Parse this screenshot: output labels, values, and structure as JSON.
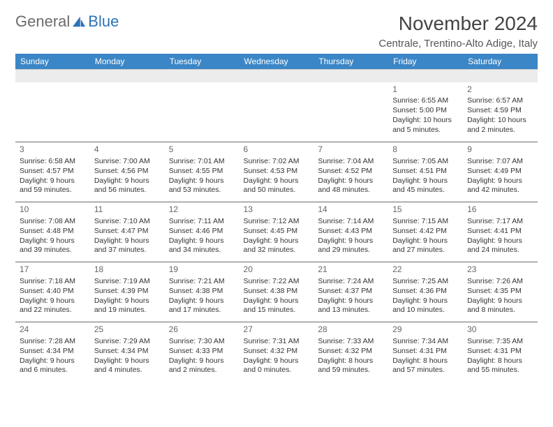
{
  "brand": {
    "text_general": "General",
    "text_blue": "Blue"
  },
  "title": {
    "month_year": "November 2024",
    "location": "Centrale, Trentino-Alto Adige, Italy"
  },
  "colors": {
    "header_bg": "#3b86c6",
    "header_text": "#ffffff",
    "border": "#6b6b6b",
    "blank_row_bg": "#ececec",
    "text": "#333333",
    "brand_blue": "#2d72b8",
    "brand_grey": "#6b6b6b"
  },
  "day_headers": [
    "Sunday",
    "Monday",
    "Tuesday",
    "Wednesday",
    "Thursday",
    "Friday",
    "Saturday"
  ],
  "weeks": [
    [
      null,
      null,
      null,
      null,
      null,
      {
        "n": "1",
        "sr": "Sunrise: 6:55 AM",
        "ss": "Sunset: 5:00 PM",
        "dl1": "Daylight: 10 hours",
        "dl2": "and 5 minutes."
      },
      {
        "n": "2",
        "sr": "Sunrise: 6:57 AM",
        "ss": "Sunset: 4:59 PM",
        "dl1": "Daylight: 10 hours",
        "dl2": "and 2 minutes."
      }
    ],
    [
      {
        "n": "3",
        "sr": "Sunrise: 6:58 AM",
        "ss": "Sunset: 4:57 PM",
        "dl1": "Daylight: 9 hours",
        "dl2": "and 59 minutes."
      },
      {
        "n": "4",
        "sr": "Sunrise: 7:00 AM",
        "ss": "Sunset: 4:56 PM",
        "dl1": "Daylight: 9 hours",
        "dl2": "and 56 minutes."
      },
      {
        "n": "5",
        "sr": "Sunrise: 7:01 AM",
        "ss": "Sunset: 4:55 PM",
        "dl1": "Daylight: 9 hours",
        "dl2": "and 53 minutes."
      },
      {
        "n": "6",
        "sr": "Sunrise: 7:02 AM",
        "ss": "Sunset: 4:53 PM",
        "dl1": "Daylight: 9 hours",
        "dl2": "and 50 minutes."
      },
      {
        "n": "7",
        "sr": "Sunrise: 7:04 AM",
        "ss": "Sunset: 4:52 PM",
        "dl1": "Daylight: 9 hours",
        "dl2": "and 48 minutes."
      },
      {
        "n": "8",
        "sr": "Sunrise: 7:05 AM",
        "ss": "Sunset: 4:51 PM",
        "dl1": "Daylight: 9 hours",
        "dl2": "and 45 minutes."
      },
      {
        "n": "9",
        "sr": "Sunrise: 7:07 AM",
        "ss": "Sunset: 4:49 PM",
        "dl1": "Daylight: 9 hours",
        "dl2": "and 42 minutes."
      }
    ],
    [
      {
        "n": "10",
        "sr": "Sunrise: 7:08 AM",
        "ss": "Sunset: 4:48 PM",
        "dl1": "Daylight: 9 hours",
        "dl2": "and 39 minutes."
      },
      {
        "n": "11",
        "sr": "Sunrise: 7:10 AM",
        "ss": "Sunset: 4:47 PM",
        "dl1": "Daylight: 9 hours",
        "dl2": "and 37 minutes."
      },
      {
        "n": "12",
        "sr": "Sunrise: 7:11 AM",
        "ss": "Sunset: 4:46 PM",
        "dl1": "Daylight: 9 hours",
        "dl2": "and 34 minutes."
      },
      {
        "n": "13",
        "sr": "Sunrise: 7:12 AM",
        "ss": "Sunset: 4:45 PM",
        "dl1": "Daylight: 9 hours",
        "dl2": "and 32 minutes."
      },
      {
        "n": "14",
        "sr": "Sunrise: 7:14 AM",
        "ss": "Sunset: 4:43 PM",
        "dl1": "Daylight: 9 hours",
        "dl2": "and 29 minutes."
      },
      {
        "n": "15",
        "sr": "Sunrise: 7:15 AM",
        "ss": "Sunset: 4:42 PM",
        "dl1": "Daylight: 9 hours",
        "dl2": "and 27 minutes."
      },
      {
        "n": "16",
        "sr": "Sunrise: 7:17 AM",
        "ss": "Sunset: 4:41 PM",
        "dl1": "Daylight: 9 hours",
        "dl2": "and 24 minutes."
      }
    ],
    [
      {
        "n": "17",
        "sr": "Sunrise: 7:18 AM",
        "ss": "Sunset: 4:40 PM",
        "dl1": "Daylight: 9 hours",
        "dl2": "and 22 minutes."
      },
      {
        "n": "18",
        "sr": "Sunrise: 7:19 AM",
        "ss": "Sunset: 4:39 PM",
        "dl1": "Daylight: 9 hours",
        "dl2": "and 19 minutes."
      },
      {
        "n": "19",
        "sr": "Sunrise: 7:21 AM",
        "ss": "Sunset: 4:38 PM",
        "dl1": "Daylight: 9 hours",
        "dl2": "and 17 minutes."
      },
      {
        "n": "20",
        "sr": "Sunrise: 7:22 AM",
        "ss": "Sunset: 4:38 PM",
        "dl1": "Daylight: 9 hours",
        "dl2": "and 15 minutes."
      },
      {
        "n": "21",
        "sr": "Sunrise: 7:24 AM",
        "ss": "Sunset: 4:37 PM",
        "dl1": "Daylight: 9 hours",
        "dl2": "and 13 minutes."
      },
      {
        "n": "22",
        "sr": "Sunrise: 7:25 AM",
        "ss": "Sunset: 4:36 PM",
        "dl1": "Daylight: 9 hours",
        "dl2": "and 10 minutes."
      },
      {
        "n": "23",
        "sr": "Sunrise: 7:26 AM",
        "ss": "Sunset: 4:35 PM",
        "dl1": "Daylight: 9 hours",
        "dl2": "and 8 minutes."
      }
    ],
    [
      {
        "n": "24",
        "sr": "Sunrise: 7:28 AM",
        "ss": "Sunset: 4:34 PM",
        "dl1": "Daylight: 9 hours",
        "dl2": "and 6 minutes."
      },
      {
        "n": "25",
        "sr": "Sunrise: 7:29 AM",
        "ss": "Sunset: 4:34 PM",
        "dl1": "Daylight: 9 hours",
        "dl2": "and 4 minutes."
      },
      {
        "n": "26",
        "sr": "Sunrise: 7:30 AM",
        "ss": "Sunset: 4:33 PM",
        "dl1": "Daylight: 9 hours",
        "dl2": "and 2 minutes."
      },
      {
        "n": "27",
        "sr": "Sunrise: 7:31 AM",
        "ss": "Sunset: 4:32 PM",
        "dl1": "Daylight: 9 hours",
        "dl2": "and 0 minutes."
      },
      {
        "n": "28",
        "sr": "Sunrise: 7:33 AM",
        "ss": "Sunset: 4:32 PM",
        "dl1": "Daylight: 8 hours",
        "dl2": "and 59 minutes."
      },
      {
        "n": "29",
        "sr": "Sunrise: 7:34 AM",
        "ss": "Sunset: 4:31 PM",
        "dl1": "Daylight: 8 hours",
        "dl2": "and 57 minutes."
      },
      {
        "n": "30",
        "sr": "Sunrise: 7:35 AM",
        "ss": "Sunset: 4:31 PM",
        "dl1": "Daylight: 8 hours",
        "dl2": "and 55 minutes."
      }
    ]
  ]
}
